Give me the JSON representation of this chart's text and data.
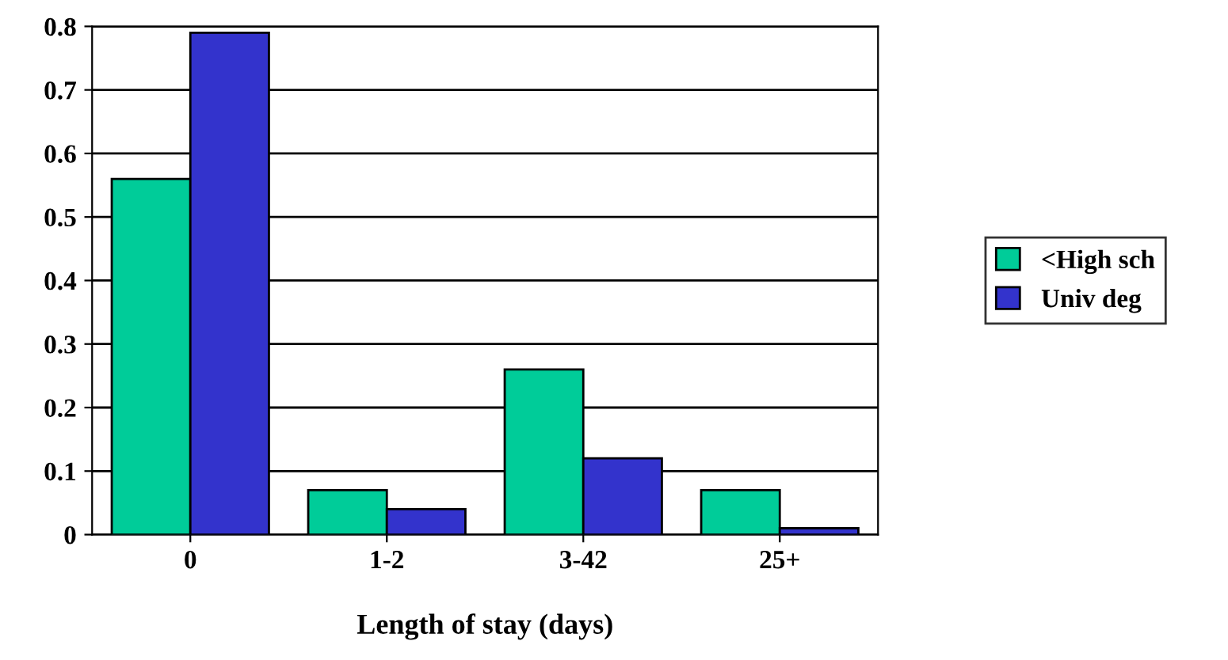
{
  "chart_data": {
    "type": "bar",
    "xlabel": "Length of stay (days)",
    "categories": [
      "0",
      "1-2",
      "3-42",
      "25+"
    ],
    "series": [
      {
        "name": "<High sch",
        "color": "#00cc99",
        "values": [
          0.56,
          0.07,
          0.26,
          0.07
        ]
      },
      {
        "name": "Univ deg",
        "color": "#3333cc",
        "values": [
          0.79,
          0.04,
          0.12,
          0.01
        ]
      }
    ],
    "ylim": [
      0,
      0.8
    ],
    "yticks": [
      0,
      0.1,
      0.2,
      0.3,
      0.4,
      0.5,
      0.6,
      0.7,
      0.8
    ],
    "grid": "y",
    "legend": "right"
  }
}
